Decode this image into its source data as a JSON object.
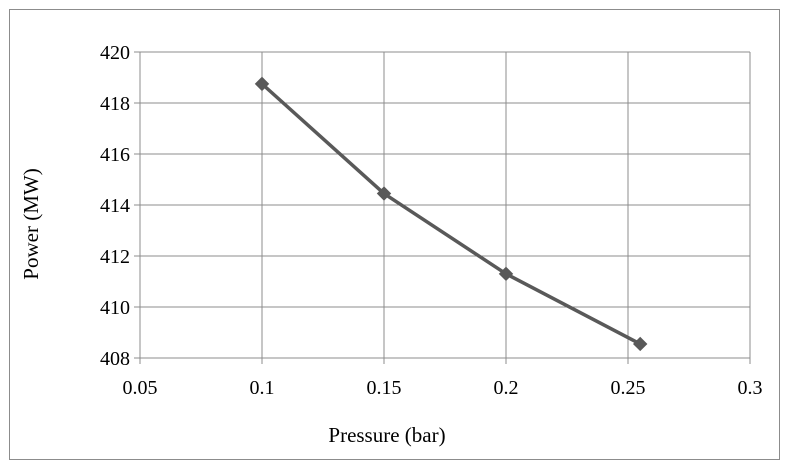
{
  "chart_data": {
    "type": "line",
    "title": "",
    "xlabel": "Pressure (bar)",
    "ylabel": "Power (MW)",
    "xlim": [
      0.05,
      0.3
    ],
    "ylim": [
      408,
      420
    ],
    "xticks": [
      0.05,
      0.1,
      0.15,
      0.2,
      0.25,
      0.3
    ],
    "yticks": [
      408,
      410,
      412,
      414,
      416,
      418,
      420
    ],
    "xtick_labels": [
      "0.05",
      "0.1",
      "0.15",
      "0.2",
      "0.25",
      "0.3"
    ],
    "ytick_labels": [
      "408",
      "410",
      "412",
      "414",
      "416",
      "418",
      "420"
    ],
    "grid": true,
    "legend": "none",
    "marker": "diamond",
    "series": [
      {
        "x": [
          0.1,
          0.15,
          0.2,
          0.255
        ],
        "values": [
          418.75,
          414.45,
          411.3,
          408.55
        ],
        "color": "#595959"
      }
    ]
  }
}
